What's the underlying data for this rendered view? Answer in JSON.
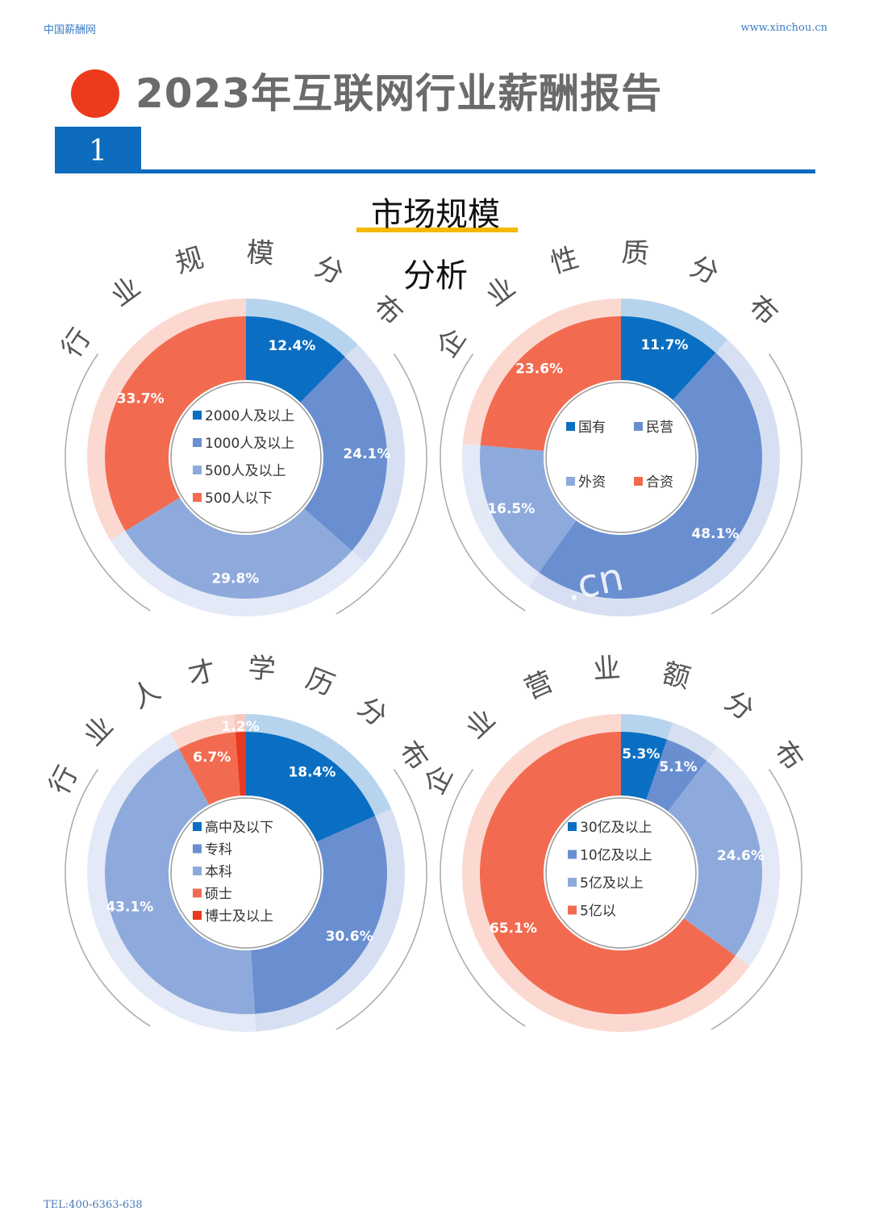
{
  "header": {
    "left_text": "中国薪酬网",
    "right_text": "www.xinchou.cn",
    "title": "2023年互联网行业薪酬报告",
    "section_number": "1"
  },
  "section": {
    "title": "市场规模",
    "subtitle": "分析"
  },
  "footer": {
    "tel": "TEL:400-6363-638"
  },
  "watermark": ".cn",
  "chart_data": [
    {
      "type": "pie",
      "title": "行业规模分布",
      "categories": [
        "2000人及以上",
        "1000人及以上",
        "500人及以上",
        "500人以下"
      ],
      "values": [
        12.4,
        24.1,
        29.8,
        33.7
      ],
      "labels": [
        "12.4%",
        "24.1%",
        "29.8%",
        "33.7%"
      ],
      "colors": [
        "#0a6fc2",
        "#6a8fd0",
        "#8eaadc",
        "#f26b50"
      ],
      "ring_colors": [
        "#b7d4ee",
        "#d6e0f2",
        "#e3e9f6",
        "#fbd9d1"
      ],
      "legend": "center"
    },
    {
      "type": "pie",
      "title": "企业性质分布",
      "categories": [
        "国有",
        "民营",
        "外资",
        "合资"
      ],
      "values": [
        11.7,
        48.1,
        16.5,
        23.6
      ],
      "labels": [
        "11.7%",
        "48.1%",
        "16.5%",
        "23.6%"
      ],
      "colors": [
        "#0a6fc2",
        "#6a8fd0",
        "#8eaadc",
        "#f26b50"
      ],
      "ring_colors": [
        "#b7d4ee",
        "#d6e0f2",
        "#e3e9f6",
        "#fbd9d1"
      ],
      "legend": "center"
    },
    {
      "type": "pie",
      "title": "行业人才学历分布",
      "categories": [
        "高中及以下",
        "专科",
        "本科",
        "硕士",
        "博士及以上"
      ],
      "values": [
        18.4,
        30.6,
        43.1,
        6.7,
        1.2
      ],
      "labels": [
        "18.4%",
        "30.6%",
        "43.1%",
        "6.7%",
        "1.2%"
      ],
      "colors": [
        "#0a6fc2",
        "#6a8fd0",
        "#8eaadc",
        "#f26b50",
        "#e8381e"
      ],
      "ring_colors": [
        "#b7d4ee",
        "#d6e0f2",
        "#e3e9f6",
        "#fbd9d1",
        "#f8c9bf"
      ],
      "legend": "center"
    },
    {
      "type": "pie",
      "title": "企业营业额分布",
      "categories": [
        "30亿及以上",
        "10亿及以上",
        "5亿及以上",
        "5亿以"
      ],
      "values": [
        5.3,
        5.1,
        24.6,
        65.1
      ],
      "labels": [
        "5.3%",
        "5.1%",
        "24.6%",
        "65.1%"
      ],
      "colors": [
        "#0a6fc2",
        "#6a8fd0",
        "#8eaadc",
        "#f26b50"
      ],
      "ring_colors": [
        "#b7d4ee",
        "#d6e0f2",
        "#e3e9f6",
        "#fbd9d1"
      ],
      "legend": "center"
    }
  ]
}
